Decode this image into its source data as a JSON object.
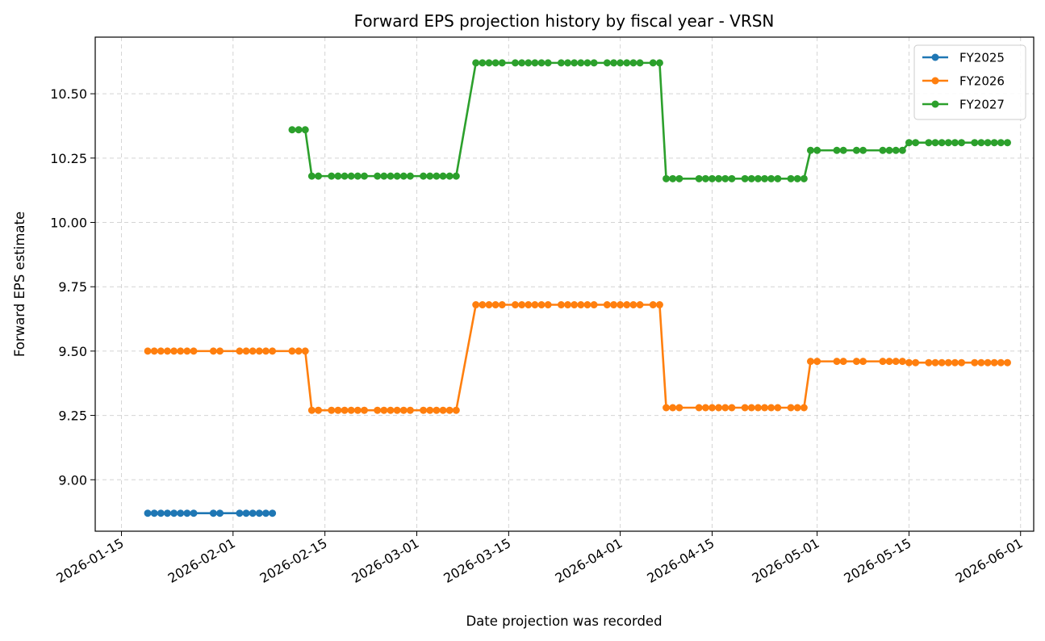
{
  "chart_data": {
    "type": "line",
    "title": "Forward EPS projection history by fiscal year - VRSN",
    "xlabel": "Date projection was recorded",
    "ylabel": "Forward EPS estimate",
    "xlim": [
      "2026-01-11",
      "2026-06-03"
    ],
    "ylim": [
      8.8,
      10.72
    ],
    "x_ticks": [
      "2026-01-15",
      "2026-02-01",
      "2026-02-15",
      "2026-03-01",
      "2026-03-15",
      "2026-04-01",
      "2026-04-15",
      "2026-05-01",
      "2026-05-15",
      "2026-06-01"
    ],
    "y_ticks": [
      9.0,
      9.25,
      9.5,
      9.75,
      10.0,
      10.25,
      10.5
    ],
    "y_tick_labels": [
      "9.00",
      "9.25",
      "9.50",
      "9.75",
      "10.00",
      "10.25",
      "10.50"
    ],
    "grid": true,
    "legend_position": "top-right",
    "series": [
      {
        "name": "FY2025",
        "color": "#1f77b4",
        "points": [
          [
            "2026-01-19",
            8.87
          ],
          [
            "2026-01-20",
            8.87
          ],
          [
            "2026-01-21",
            8.87
          ],
          [
            "2026-01-22",
            8.87
          ],
          [
            "2026-01-23",
            8.87
          ],
          [
            "2026-01-24",
            8.87
          ],
          [
            "2026-01-25",
            8.87
          ],
          [
            "2026-01-26",
            8.87
          ],
          [
            "2026-01-29",
            8.87
          ],
          [
            "2026-01-30",
            8.87
          ],
          [
            "2026-02-02",
            8.87
          ],
          [
            "2026-02-03",
            8.87
          ],
          [
            "2026-02-04",
            8.87
          ],
          [
            "2026-02-05",
            8.87
          ],
          [
            "2026-02-06",
            8.87
          ],
          [
            "2026-02-07",
            8.87
          ]
        ]
      },
      {
        "name": "FY2026",
        "color": "#ff7f0e",
        "points": [
          [
            "2026-01-19",
            9.5
          ],
          [
            "2026-01-20",
            9.5
          ],
          [
            "2026-01-21",
            9.5
          ],
          [
            "2026-01-22",
            9.5
          ],
          [
            "2026-01-23",
            9.5
          ],
          [
            "2026-01-24",
            9.5
          ],
          [
            "2026-01-25",
            9.5
          ],
          [
            "2026-01-26",
            9.5
          ],
          [
            "2026-01-29",
            9.5
          ],
          [
            "2026-01-30",
            9.5
          ],
          [
            "2026-02-02",
            9.5
          ],
          [
            "2026-02-03",
            9.5
          ],
          [
            "2026-02-04",
            9.5
          ],
          [
            "2026-02-05",
            9.5
          ],
          [
            "2026-02-06",
            9.5
          ],
          [
            "2026-02-07",
            9.5
          ],
          [
            "2026-02-10",
            9.5
          ],
          [
            "2026-02-11",
            9.5
          ],
          [
            "2026-02-12",
            9.5
          ],
          [
            "2026-02-13",
            9.27
          ],
          [
            "2026-02-14",
            9.27
          ],
          [
            "2026-02-16",
            9.27
          ],
          [
            "2026-02-17",
            9.27
          ],
          [
            "2026-02-18",
            9.27
          ],
          [
            "2026-02-19",
            9.27
          ],
          [
            "2026-02-20",
            9.27
          ],
          [
            "2026-02-21",
            9.27
          ],
          [
            "2026-02-23",
            9.27
          ],
          [
            "2026-02-24",
            9.27
          ],
          [
            "2026-02-25",
            9.27
          ],
          [
            "2026-02-26",
            9.27
          ],
          [
            "2026-02-27",
            9.27
          ],
          [
            "2026-02-28",
            9.27
          ],
          [
            "2026-03-02",
            9.27
          ],
          [
            "2026-03-03",
            9.27
          ],
          [
            "2026-03-04",
            9.27
          ],
          [
            "2026-03-05",
            9.27
          ],
          [
            "2026-03-06",
            9.27
          ],
          [
            "2026-03-07",
            9.27
          ],
          [
            "2026-03-10",
            9.68
          ],
          [
            "2026-03-11",
            9.68
          ],
          [
            "2026-03-12",
            9.68
          ],
          [
            "2026-03-13",
            9.68
          ],
          [
            "2026-03-14",
            9.68
          ],
          [
            "2026-03-16",
            9.68
          ],
          [
            "2026-03-17",
            9.68
          ],
          [
            "2026-03-18",
            9.68
          ],
          [
            "2026-03-19",
            9.68
          ],
          [
            "2026-03-20",
            9.68
          ],
          [
            "2026-03-21",
            9.68
          ],
          [
            "2026-03-23",
            9.68
          ],
          [
            "2026-03-24",
            9.68
          ],
          [
            "2026-03-25",
            9.68
          ],
          [
            "2026-03-26",
            9.68
          ],
          [
            "2026-03-27",
            9.68
          ],
          [
            "2026-03-28",
            9.68
          ],
          [
            "2026-03-30",
            9.68
          ],
          [
            "2026-03-31",
            9.68
          ],
          [
            "2026-04-01",
            9.68
          ],
          [
            "2026-04-02",
            9.68
          ],
          [
            "2026-04-03",
            9.68
          ],
          [
            "2026-04-04",
            9.68
          ],
          [
            "2026-04-06",
            9.68
          ],
          [
            "2026-04-07",
            9.68
          ],
          [
            "2026-04-08",
            9.28
          ],
          [
            "2026-04-09",
            9.28
          ],
          [
            "2026-04-10",
            9.28
          ],
          [
            "2026-04-13",
            9.28
          ],
          [
            "2026-04-14",
            9.28
          ],
          [
            "2026-04-15",
            9.28
          ],
          [
            "2026-04-16",
            9.28
          ],
          [
            "2026-04-17",
            9.28
          ],
          [
            "2026-04-18",
            9.28
          ],
          [
            "2026-04-20",
            9.28
          ],
          [
            "2026-04-21",
            9.28
          ],
          [
            "2026-04-22",
            9.28
          ],
          [
            "2026-04-23",
            9.28
          ],
          [
            "2026-04-24",
            9.28
          ],
          [
            "2026-04-25",
            9.28
          ],
          [
            "2026-04-27",
            9.28
          ],
          [
            "2026-04-28",
            9.28
          ],
          [
            "2026-04-29",
            9.28
          ],
          [
            "2026-04-30",
            9.46
          ],
          [
            "2026-05-01",
            9.46
          ],
          [
            "2026-05-04",
            9.46
          ],
          [
            "2026-05-05",
            9.46
          ],
          [
            "2026-05-07",
            9.46
          ],
          [
            "2026-05-08",
            9.46
          ],
          [
            "2026-05-11",
            9.46
          ],
          [
            "2026-05-12",
            9.46
          ],
          [
            "2026-05-13",
            9.46
          ],
          [
            "2026-05-14",
            9.46
          ],
          [
            "2026-05-15",
            9.455
          ],
          [
            "2026-05-16",
            9.455
          ],
          [
            "2026-05-18",
            9.455
          ],
          [
            "2026-05-19",
            9.455
          ],
          [
            "2026-05-20",
            9.455
          ],
          [
            "2026-05-21",
            9.455
          ],
          [
            "2026-05-22",
            9.455
          ],
          [
            "2026-05-23",
            9.455
          ],
          [
            "2026-05-25",
            9.455
          ],
          [
            "2026-05-26",
            9.455
          ],
          [
            "2026-05-27",
            9.455
          ],
          [
            "2026-05-28",
            9.455
          ],
          [
            "2026-05-29",
            9.455
          ],
          [
            "2026-05-30",
            9.455
          ]
        ]
      },
      {
        "name": "FY2027",
        "color": "#2ca02c",
        "points": [
          [
            "2026-02-10",
            10.36
          ],
          [
            "2026-02-11",
            10.36
          ],
          [
            "2026-02-12",
            10.36
          ],
          [
            "2026-02-13",
            10.18
          ],
          [
            "2026-02-14",
            10.18
          ],
          [
            "2026-02-16",
            10.18
          ],
          [
            "2026-02-17",
            10.18
          ],
          [
            "2026-02-18",
            10.18
          ],
          [
            "2026-02-19",
            10.18
          ],
          [
            "2026-02-20",
            10.18
          ],
          [
            "2026-02-21",
            10.18
          ],
          [
            "2026-02-23",
            10.18
          ],
          [
            "2026-02-24",
            10.18
          ],
          [
            "2026-02-25",
            10.18
          ],
          [
            "2026-02-26",
            10.18
          ],
          [
            "2026-02-27",
            10.18
          ],
          [
            "2026-02-28",
            10.18
          ],
          [
            "2026-03-02",
            10.18
          ],
          [
            "2026-03-03",
            10.18
          ],
          [
            "2026-03-04",
            10.18
          ],
          [
            "2026-03-05",
            10.18
          ],
          [
            "2026-03-06",
            10.18
          ],
          [
            "2026-03-07",
            10.18
          ],
          [
            "2026-03-10",
            10.62
          ],
          [
            "2026-03-11",
            10.62
          ],
          [
            "2026-03-12",
            10.62
          ],
          [
            "2026-03-13",
            10.62
          ],
          [
            "2026-03-14",
            10.62
          ],
          [
            "2026-03-16",
            10.62
          ],
          [
            "2026-03-17",
            10.62
          ],
          [
            "2026-03-18",
            10.62
          ],
          [
            "2026-03-19",
            10.62
          ],
          [
            "2026-03-20",
            10.62
          ],
          [
            "2026-03-21",
            10.62
          ],
          [
            "2026-03-23",
            10.62
          ],
          [
            "2026-03-24",
            10.62
          ],
          [
            "2026-03-25",
            10.62
          ],
          [
            "2026-03-26",
            10.62
          ],
          [
            "2026-03-27",
            10.62
          ],
          [
            "2026-03-28",
            10.62
          ],
          [
            "2026-03-30",
            10.62
          ],
          [
            "2026-03-31",
            10.62
          ],
          [
            "2026-04-01",
            10.62
          ],
          [
            "2026-04-02",
            10.62
          ],
          [
            "2026-04-03",
            10.62
          ],
          [
            "2026-04-04",
            10.62
          ],
          [
            "2026-04-06",
            10.62
          ],
          [
            "2026-04-07",
            10.62
          ],
          [
            "2026-04-08",
            10.17
          ],
          [
            "2026-04-09",
            10.17
          ],
          [
            "2026-04-10",
            10.17
          ],
          [
            "2026-04-13",
            10.17
          ],
          [
            "2026-04-14",
            10.17
          ],
          [
            "2026-04-15",
            10.17
          ],
          [
            "2026-04-16",
            10.17
          ],
          [
            "2026-04-17",
            10.17
          ],
          [
            "2026-04-18",
            10.17
          ],
          [
            "2026-04-20",
            10.17
          ],
          [
            "2026-04-21",
            10.17
          ],
          [
            "2026-04-22",
            10.17
          ],
          [
            "2026-04-23",
            10.17
          ],
          [
            "2026-04-24",
            10.17
          ],
          [
            "2026-04-25",
            10.17
          ],
          [
            "2026-04-27",
            10.17
          ],
          [
            "2026-04-28",
            10.17
          ],
          [
            "2026-04-29",
            10.17
          ],
          [
            "2026-04-30",
            10.28
          ],
          [
            "2026-05-01",
            10.28
          ],
          [
            "2026-05-04",
            10.28
          ],
          [
            "2026-05-05",
            10.28
          ],
          [
            "2026-05-07",
            10.28
          ],
          [
            "2026-05-08",
            10.28
          ],
          [
            "2026-05-11",
            10.28
          ],
          [
            "2026-05-12",
            10.28
          ],
          [
            "2026-05-13",
            10.28
          ],
          [
            "2026-05-14",
            10.28
          ],
          [
            "2026-05-15",
            10.31
          ],
          [
            "2026-05-16",
            10.31
          ],
          [
            "2026-05-18",
            10.31
          ],
          [
            "2026-05-19",
            10.31
          ],
          [
            "2026-05-20",
            10.31
          ],
          [
            "2026-05-21",
            10.31
          ],
          [
            "2026-05-22",
            10.31
          ],
          [
            "2026-05-23",
            10.31
          ],
          [
            "2026-05-25",
            10.31
          ],
          [
            "2026-05-26",
            10.31
          ],
          [
            "2026-05-27",
            10.31
          ],
          [
            "2026-05-28",
            10.31
          ],
          [
            "2026-05-29",
            10.31
          ],
          [
            "2026-05-30",
            10.31
          ]
        ]
      }
    ]
  }
}
